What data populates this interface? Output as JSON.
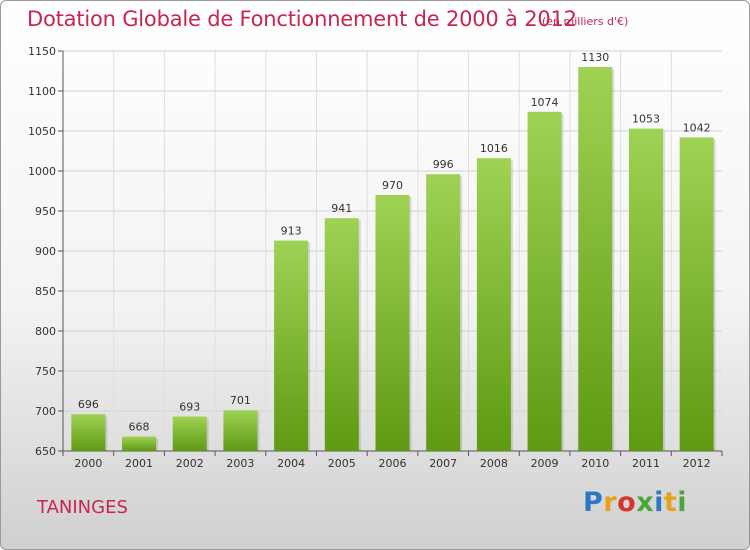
{
  "header": {
    "title": "Dotation Globale de Fonctionnement de 2000 à 2012",
    "unit": "(en milliers d'€)"
  },
  "footer": {
    "commune": "TANINGES",
    "logo_text": "Proxiti",
    "logo_colors": [
      "#2b78c5",
      "#e8a21a",
      "#d8332c",
      "#4aa63c",
      "#2b78c5",
      "#e8a21a",
      "#4aa63c"
    ]
  },
  "chart_data": {
    "type": "bar",
    "categories": [
      "2000",
      "2001",
      "2002",
      "2003",
      "2004",
      "2005",
      "2006",
      "2007",
      "2008",
      "2009",
      "2010",
      "2011",
      "2012"
    ],
    "values": [
      696,
      668,
      693,
      701,
      913,
      941,
      970,
      996,
      1016,
      1074,
      1130,
      1053,
      1042
    ],
    "title": "Dotation Globale de Fonctionnement de 2000 à 2012",
    "ylabel": "",
    "xlabel": "",
    "ylim": [
      650,
      1150
    ],
    "yticks": [
      650,
      700,
      750,
      800,
      850,
      900,
      950,
      1000,
      1050,
      1100,
      1150
    ],
    "grid": true,
    "bar_color_light": "#9fd254",
    "bar_color_dark": "#5e9a12"
  }
}
